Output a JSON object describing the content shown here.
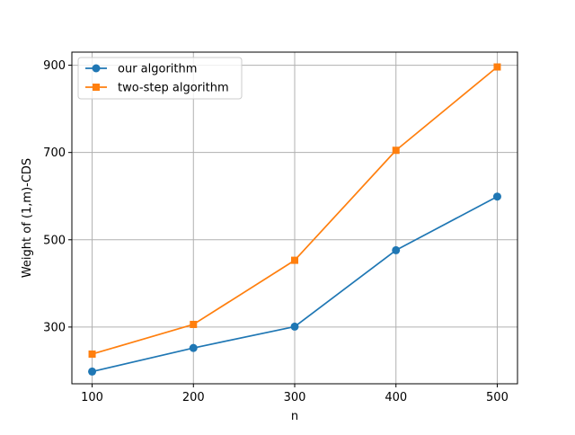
{
  "chart_data": {
    "type": "line",
    "title": "",
    "xlabel": "n",
    "ylabel": "Weight of (1,m)-CDS",
    "x": [
      100,
      200,
      300,
      400,
      500
    ],
    "xticks": [
      "100",
      "200",
      "300",
      "400",
      "500"
    ],
    "yticks": [
      "300",
      "500",
      "700",
      "900"
    ],
    "xlim": [
      80,
      520
    ],
    "ylim": [
      170,
      930
    ],
    "grid": true,
    "legend_position": "top-left",
    "series": [
      {
        "name": "our algorithm",
        "values": [
          198,
          252,
          301,
          476,
          599
        ],
        "color": "#1f77b4",
        "marker": "circle"
      },
      {
        "name": "two-step algorithm",
        "values": [
          238,
          306,
          453,
          705,
          896
        ],
        "color": "#ff7f0e",
        "marker": "square"
      }
    ]
  }
}
